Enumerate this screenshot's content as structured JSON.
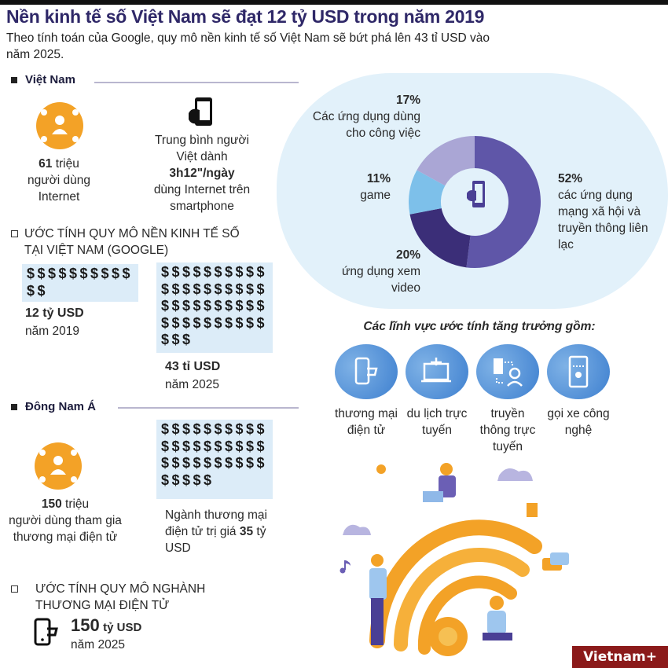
{
  "header": {
    "title": "Nền kinh tế số Việt Nam sẽ đạt 12 tỷ USD trong năm 2019",
    "subtitle": "Theo tính toán của Google, quy mô nền kinh tế số Việt Nam sẽ bứt phá lên 43 tỉ USD vào năm 2025."
  },
  "vietnam": {
    "section_title": "Việt Nam",
    "internet_users_num": "61",
    "internet_users_text1": "triệu",
    "internet_users_text2": "người dùng Internet",
    "phone_text1": "Trung bình người Việt dành",
    "phone_time": "3h12\"/ngày",
    "phone_text2": "dùng Internet trên smartphone",
    "estimate_heading": "ƯỚC TÍNH QUY MÔ NỀN KINH TẾ SỐ TẠI VIỆT NAM (GOOGLE)",
    "y2019_dollars": 12,
    "y2019_value": "12 tỷ USD",
    "y2019_label": "năm 2019",
    "y2025_dollars": 43,
    "y2025_value": "43 tỉ USD",
    "y2025_label": "năm 2025"
  },
  "sea": {
    "section_title": "Đông Nam Á",
    "users_num": "150",
    "users_text1": "triệu",
    "users_text2": "người dùng tham gia thương mại điện tử",
    "ecom_dollars": 35,
    "ecom_text1": "Ngành thương mại điện tử trị giá",
    "ecom_num": "35",
    "ecom_text2": "tỷ USD",
    "estimate_heading": "ƯỚC TÍNH QUY MÔ NGHÀNH THƯƠNG MẠI ĐIỆN TỬ",
    "est_num": "150",
    "est_unit": "tỷ USD",
    "est_year": "năm 2025"
  },
  "chart_data": {
    "type": "pie",
    "donut": true,
    "slices": [
      {
        "pct": "52%",
        "value": 52,
        "label": "các ứng dụng mạng xã hội và truyền thông liên lạc",
        "color": "#5f56a8"
      },
      {
        "pct": "20%",
        "value": 20,
        "label": "ứng dụng xem video",
        "color": "#3b2e78"
      },
      {
        "pct": "11%",
        "value": 11,
        "label": "game",
        "color": "#7dc0ea"
      },
      {
        "pct": "17%",
        "value": 17,
        "label": "Các ứng dụng dùng cho công việc",
        "color": "#aaa6d5"
      }
    ],
    "center_icon": "smartphone-hand-icon"
  },
  "growth": {
    "heading": "Các lĩnh vực ước tính tăng trưởng gồm:",
    "items": [
      {
        "label": "thương mại điện tử",
        "icon": "phone-cart-icon"
      },
      {
        "label": "du lịch trực tuyến",
        "icon": "laptop-plane-icon"
      },
      {
        "label": "truyền thông trực tuyến",
        "icon": "headset-operator-icon"
      },
      {
        "label": "gọi xe công nghệ",
        "icon": "taxi-app-icon"
      }
    ]
  },
  "brand": {
    "logo": "Vietnam+"
  },
  "colors": {
    "title": "#2f2868",
    "accent_orange": "#f3a227",
    "panel": "#e2f1fa",
    "dollar_box": "#dcecf8"
  }
}
